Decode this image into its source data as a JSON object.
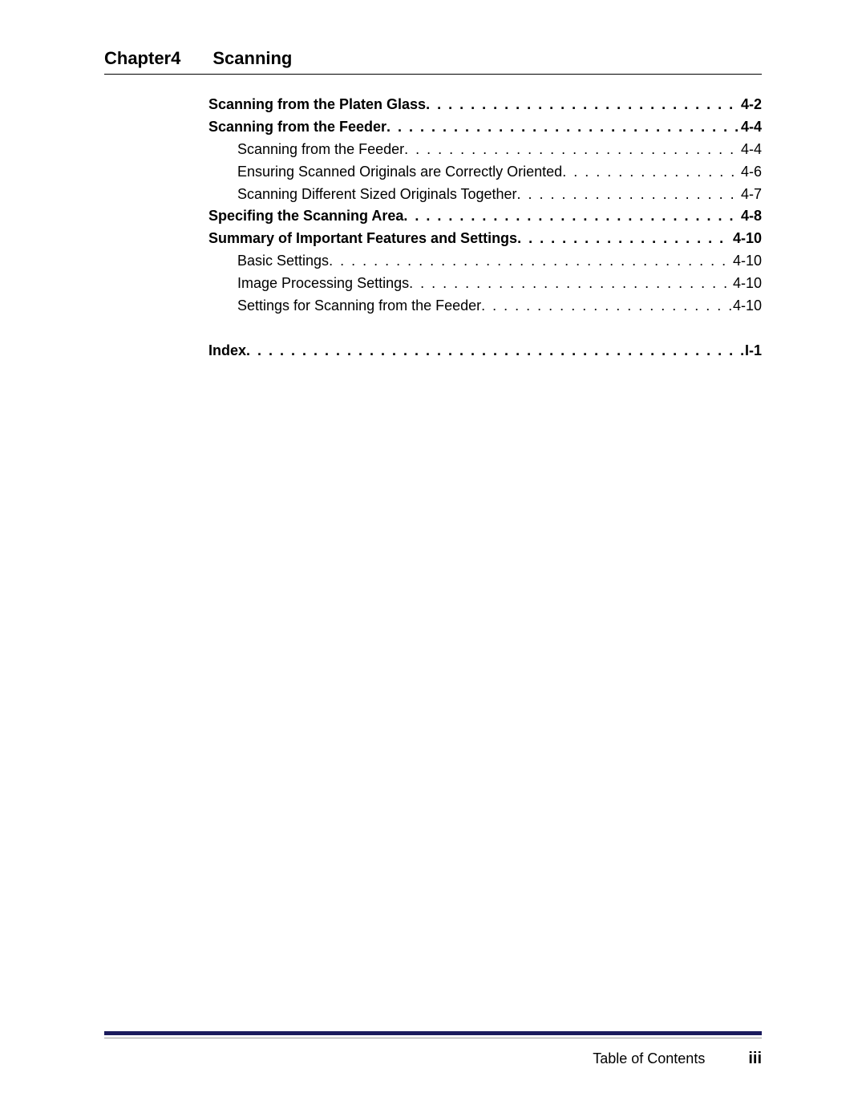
{
  "chapter": {
    "label": "Chapter4",
    "title": "Scanning"
  },
  "toc": [
    {
      "title": "Scanning from the Platen Glass",
      "page": "4-2",
      "bold": true,
      "indent": false
    },
    {
      "title": "Scanning from the Feeder",
      "page": "4-4",
      "bold": true,
      "indent": false
    },
    {
      "title": "Scanning from the Feeder",
      "page": "4-4",
      "bold": false,
      "indent": true
    },
    {
      "title": "Ensuring Scanned Originals are Correctly Oriented",
      "page": "4-6",
      "bold": false,
      "indent": true
    },
    {
      "title": "Scanning Different Sized Originals Together",
      "page": "4-7",
      "bold": false,
      "indent": true
    },
    {
      "title": "Specifing the Scanning Area",
      "page": "4-8",
      "bold": true,
      "indent": false
    },
    {
      "title": "Summary of Important Features and Settings",
      "page": "4-10",
      "bold": true,
      "indent": false
    },
    {
      "title": "Basic Settings",
      "page": "4-10",
      "bold": false,
      "indent": true
    },
    {
      "title": "Image Processing Settings",
      "page": "4-10",
      "bold": false,
      "indent": true
    },
    {
      "title": "Settings for Scanning from the Feeder",
      "page": "4-10",
      "bold": false,
      "indent": true
    }
  ],
  "index": {
    "title": "Index",
    "page": "I-1"
  },
  "footer": {
    "section": "Table of Contents",
    "page": "iii"
  },
  "colors": {
    "rule_primary": "#1a1a5c",
    "rule_secondary": "#9a9a9a",
    "text": "#000000",
    "bg": "#ffffff"
  }
}
